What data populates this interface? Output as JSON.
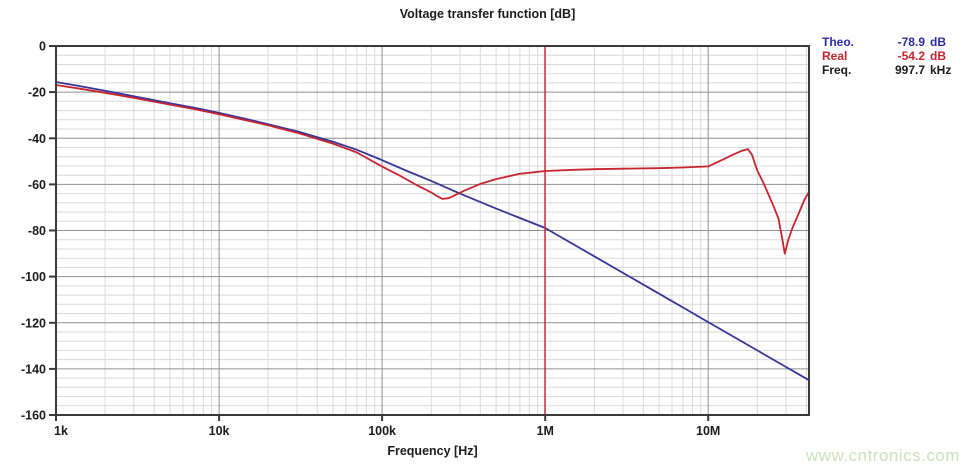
{
  "title": "Voltage transfer function [dB]",
  "legend": {
    "rows": [
      {
        "label": "Theo.",
        "value": "-78.9",
        "unit": "dB",
        "color": "#2b2ba6"
      },
      {
        "label": "Real",
        "value": "-54.2",
        "unit": "dB",
        "color": "#c8242f"
      },
      {
        "label": "Freq.",
        "value": "997.7",
        "unit": "kHz",
        "color": "#1c1c1c"
      }
    ]
  },
  "watermark": "www.cntronics.com",
  "colors": {
    "background": "#ffffff",
    "grid_minor": "#d9d9d9",
    "grid_major": "#8f8f8f",
    "border": "#3a3a3a",
    "watermark": "#c9e3ba"
  },
  "chart_data": {
    "type": "line",
    "title": "Voltage transfer function [dB]",
    "xlabel": "Frequency [Hz]",
    "ylabel": "",
    "x_scale": "log",
    "xlim": [
      1000,
      41500000
    ],
    "ylim": [
      -160,
      0
    ],
    "grid": true,
    "legend_position": "top-right",
    "y_major_step": 20,
    "y_minor_step": 4,
    "x_ticks": [
      {
        "f": 1000,
        "label": "1k"
      },
      {
        "f": 10000,
        "label": "10k"
      },
      {
        "f": 100000,
        "label": "100k"
      },
      {
        "f": 1000000,
        "label": "1M"
      },
      {
        "f": 10000000,
        "label": "10M"
      }
    ],
    "y_ticks": [
      {
        "v": 0,
        "label": "0"
      },
      {
        "v": -20,
        "label": "-20"
      },
      {
        "v": -40,
        "label": "-40"
      },
      {
        "v": -60,
        "label": "-60"
      },
      {
        "v": -80,
        "label": "-80"
      },
      {
        "v": -100,
        "label": "-100"
      },
      {
        "v": -120,
        "label": "-120"
      },
      {
        "v": -140,
        "label": "-140"
      },
      {
        "v": -160,
        "label": "-160"
      }
    ],
    "cursor": {
      "freq_hz": 997700,
      "label": "997.7 kHz",
      "color": "#c8242f"
    },
    "series": [
      {
        "name": "Theo.",
        "color": "#35359a",
        "points": [
          [
            1000,
            -15.6
          ],
          [
            1400,
            -17.4
          ],
          [
            2000,
            -19.4
          ],
          [
            3000,
            -21.8
          ],
          [
            5000,
            -24.8
          ],
          [
            7000,
            -26.7
          ],
          [
            10000,
            -29.0
          ],
          [
            14000,
            -31.3
          ],
          [
            20000,
            -33.9
          ],
          [
            30000,
            -37.0
          ],
          [
            50000,
            -41.5
          ],
          [
            70000,
            -45.0
          ],
          [
            100000,
            -49.5
          ],
          [
            140000,
            -54.0
          ],
          [
            200000,
            -58.5
          ],
          [
            300000,
            -64.0
          ],
          [
            500000,
            -70.5
          ],
          [
            700000,
            -74.6
          ],
          [
            1000000,
            -78.9
          ],
          [
            1500000,
            -86.1
          ],
          [
            2000000,
            -91.2
          ],
          [
            3000000,
            -98.4
          ],
          [
            5000000,
            -107.4
          ],
          [
            7000000,
            -113.4
          ],
          [
            10000000,
            -119.7
          ],
          [
            14000000,
            -125.7
          ],
          [
            20000000,
            -132.0
          ],
          [
            30000000,
            -139.2
          ],
          [
            41500000,
            -144.9
          ]
        ]
      },
      {
        "name": "Real",
        "color": "#c8242f",
        "points": [
          [
            1000,
            -16.9
          ],
          [
            1400,
            -18.5
          ],
          [
            2000,
            -20.3
          ],
          [
            3000,
            -22.5
          ],
          [
            5000,
            -25.4
          ],
          [
            7000,
            -27.3
          ],
          [
            10000,
            -29.6
          ],
          [
            14000,
            -31.9
          ],
          [
            20000,
            -34.4
          ],
          [
            30000,
            -37.6
          ],
          [
            50000,
            -42.3
          ],
          [
            70000,
            -46.2
          ],
          [
            100000,
            -52.3
          ],
          [
            130000,
            -56.4
          ],
          [
            160000,
            -60.0
          ],
          [
            200000,
            -63.5
          ],
          [
            220000,
            -65.3
          ],
          [
            235000,
            -66.3
          ],
          [
            255000,
            -66.0
          ],
          [
            270000,
            -65.2
          ],
          [
            320000,
            -62.7
          ],
          [
            400000,
            -59.8
          ],
          [
            500000,
            -57.7
          ],
          [
            700000,
            -55.4
          ],
          [
            1000000,
            -54.2
          ],
          [
            1500000,
            -53.7
          ],
          [
            2000000,
            -53.4
          ],
          [
            3000000,
            -53.2
          ],
          [
            5000000,
            -53.0
          ],
          [
            7000000,
            -52.7
          ],
          [
            10000000,
            -52.2
          ],
          [
            12000000,
            -49.6
          ],
          [
            14000000,
            -47.3
          ],
          [
            16000000,
            -45.5
          ],
          [
            17500000,
            -44.7
          ],
          [
            18500000,
            -47.0
          ],
          [
            20000000,
            -54.0
          ],
          [
            22000000,
            -60.0
          ],
          [
            25000000,
            -69.0
          ],
          [
            27000000,
            -75.0
          ],
          [
            28500000,
            -84.0
          ],
          [
            29500000,
            -90.0
          ],
          [
            31000000,
            -84.0
          ],
          [
            33000000,
            -78.5
          ],
          [
            36000000,
            -72.4
          ],
          [
            39000000,
            -66.5
          ],
          [
            41500000,
            -63.3
          ]
        ]
      }
    ]
  }
}
